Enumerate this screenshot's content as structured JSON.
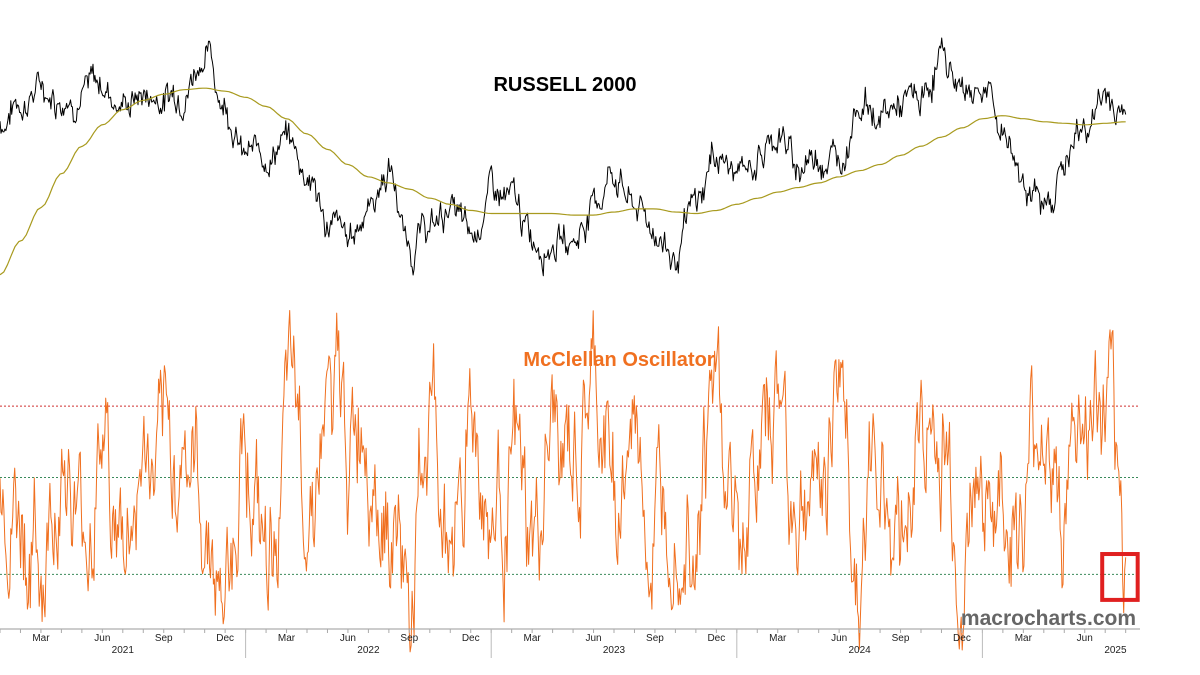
{
  "chart_data": [
    {
      "type": "line",
      "title": "RUSSELL 2000",
      "title_color": "#000000",
      "series": [
        {
          "color": "#000000",
          "x": [
            "2021-01",
            "2021-02",
            "2021-03",
            "2021-04",
            "2021-05",
            "2021-06",
            "2021-07",
            "2021-08",
            "2021-09",
            "2021-10",
            "2021-11",
            "2021-12",
            "2022-01",
            "2022-02",
            "2022-03",
            "2022-04",
            "2022-05",
            "2022-06",
            "2022-07",
            "2022-08",
            "2022-09",
            "2022-10",
            "2022-11",
            "2022-12",
            "2023-01",
            "2023-02",
            "2023-03",
            "2023-04",
            "2023-05",
            "2023-06",
            "2023-07",
            "2023-08",
            "2023-09",
            "2023-10",
            "2023-11",
            "2023-12",
            "2024-01",
            "2024-02",
            "2024-03",
            "2024-04",
            "2024-05",
            "2024-06",
            "2024-07",
            "2024-08",
            "2024-09",
            "2024-10",
            "2024-11",
            "2024-12",
            "2025-01",
            "2025-02",
            "2025-03",
            "2025-04",
            "2025-05",
            "2025-06",
            "2025-07",
            "2025-08"
          ],
          "values": [
            2150,
            2220,
            2260,
            2240,
            2250,
            2270,
            2210,
            2240,
            2230,
            2270,
            2380,
            2220,
            2030,
            2050,
            2090,
            1990,
            1820,
            1760,
            1880,
            1990,
            1740,
            1800,
            1870,
            1760,
            1920,
            1880,
            1770,
            1770,
            1760,
            1880,
            1990,
            1870,
            1800,
            1700,
            1870,
            2050,
            1970,
            2030,
            2110,
            2000,
            2050,
            2030,
            2230,
            2160,
            2200,
            2210,
            2360,
            2260,
            2270,
            2120,
            1980,
            1850,
            2020,
            2130,
            2230,
            2170
          ]
        },
        {
          "color": "#a89a1e",
          "x": [
            "2021-01",
            "2021-02",
            "2021-03",
            "2021-04",
            "2021-05",
            "2021-06",
            "2021-07",
            "2021-08",
            "2021-09",
            "2021-10",
            "2021-11",
            "2021-12",
            "2022-01",
            "2022-02",
            "2022-03",
            "2022-04",
            "2022-05",
            "2022-06",
            "2022-07",
            "2022-08",
            "2022-09",
            "2022-10",
            "2022-11",
            "2022-12",
            "2023-01",
            "2023-02",
            "2023-03",
            "2023-04",
            "2023-05",
            "2023-06",
            "2023-07",
            "2023-08",
            "2023-09",
            "2023-10",
            "2023-11",
            "2023-12",
            "2024-01",
            "2024-02",
            "2024-03",
            "2024-04",
            "2024-05",
            "2024-06",
            "2024-07",
            "2024-08",
            "2024-09",
            "2024-10",
            "2024-11",
            "2024-12",
            "2025-01",
            "2025-02",
            "2025-03",
            "2025-04",
            "2025-05",
            "2025-06",
            "2025-07",
            "2025-08"
          ],
          "values": [
            1650,
            1760,
            1870,
            1980,
            2070,
            2140,
            2190,
            2220,
            2240,
            2255,
            2260,
            2250,
            2230,
            2200,
            2160,
            2110,
            2060,
            2010,
            1970,
            1950,
            1930,
            1900,
            1880,
            1860,
            1850,
            1850,
            1850,
            1850,
            1845,
            1845,
            1855,
            1865,
            1865,
            1855,
            1850,
            1860,
            1880,
            1900,
            1920,
            1935,
            1950,
            1970,
            1990,
            2010,
            2040,
            2070,
            2100,
            2130,
            2160,
            2170,
            2160,
            2150,
            2145,
            2140,
            2145,
            2150
          ]
        }
      ],
      "ylim": [
        1600,
        2450
      ]
    },
    {
      "type": "line",
      "title": "McClellan Oscillator",
      "title_color": "#f07020",
      "series": [
        {
          "color": "#f07020",
          "x": [
            "2021-01",
            "2021-02",
            "2021-03",
            "2021-04",
            "2021-05",
            "2021-06",
            "2021-07",
            "2021-08",
            "2021-09",
            "2021-10",
            "2021-11",
            "2021-12",
            "2022-01",
            "2022-02",
            "2022-03",
            "2022-04",
            "2022-05",
            "2022-06",
            "2022-07",
            "2022-08",
            "2022-09",
            "2022-10",
            "2022-11",
            "2022-12",
            "2023-01",
            "2023-02",
            "2023-03",
            "2023-04",
            "2023-05",
            "2023-06",
            "2023-07",
            "2023-08",
            "2023-09",
            "2023-10",
            "2023-11",
            "2023-12",
            "2024-01",
            "2024-02",
            "2024-03",
            "2024-04",
            "2024-05",
            "2024-06",
            "2024-07",
            "2024-08",
            "2024-09",
            "2024-10",
            "2024-11",
            "2024-12",
            "2025-01",
            "2025-02",
            "2025-03",
            "2025-04",
            "2025-05",
            "2025-06",
            "2025-07",
            "2025-08"
          ],
          "values": [
            20,
            -40,
            -90,
            30,
            -60,
            40,
            -75,
            15,
            -20,
            45,
            -35,
            -110,
            60,
            -100,
            40,
            10,
            65,
            20,
            80,
            -15,
            -115,
            55,
            -55,
            70,
            -40,
            15,
            -95,
            25,
            0,
            65,
            -10,
            30,
            -65,
            30,
            10,
            80,
            -70,
            20,
            70,
            -30,
            -10,
            110,
            -95,
            20,
            -40,
            50,
            10,
            -80,
            20,
            -30,
            -60,
            55,
            -20,
            40,
            30,
            -95
          ]
        }
      ],
      "reference_lines": [
        {
          "value": 70,
          "color": "#d03030"
        },
        {
          "value": 0,
          "color": "#3a8a5a"
        },
        {
          "value": -95,
          "color": "#3a8a5a"
        }
      ],
      "ylim": [
        -125,
        130
      ],
      "highlight": {
        "color": "#e02020",
        "x_start": "2025-07",
        "x_end": "2025-08",
        "y_range": [
          -120,
          -75
        ]
      }
    }
  ],
  "x_axis": {
    "month_ticks": [
      "Mar",
      "Jun",
      "Sep",
      "Dec",
      "Mar",
      "Jun",
      "Sep",
      "Dec",
      "Mar",
      "Jun",
      "Sep",
      "Dec",
      "Mar",
      "Jun",
      "Sep",
      "Dec",
      "Mar",
      "Jun"
    ],
    "years": [
      "2021",
      "2022",
      "2023",
      "2024",
      "2025"
    ]
  },
  "watermark": "macrocharts.com"
}
